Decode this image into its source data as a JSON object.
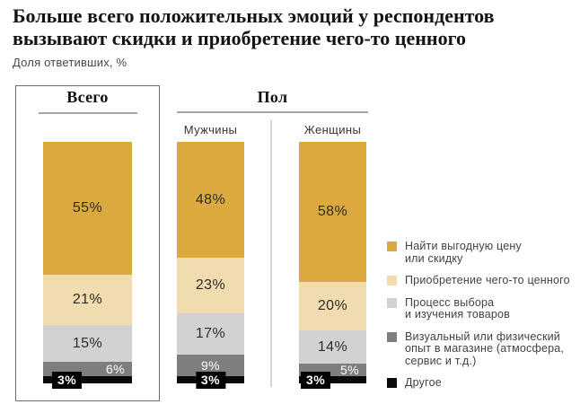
{
  "header": {
    "title": "Больше всего положительных эмоций у респондентов\nвызывают скидки и приобретение чего-то ценного",
    "subtitle": "Доля ответивших, %"
  },
  "chart_data": {
    "type": "bar",
    "stacked": true,
    "orientation": "vertical",
    "value_suffix": "%",
    "ylim": [
      0,
      100
    ],
    "grid": false,
    "legend_position": "right",
    "categories": [
      "Всего",
      "Мужчины",
      "Женщины"
    ],
    "group_headers": [
      {
        "label": "Всего",
        "categories": [
          "Всего"
        ],
        "boxed": true
      },
      {
        "label": "Пол",
        "categories": [
          "Мужчины",
          "Женщины"
        ],
        "boxed": false
      }
    ],
    "series": [
      {
        "key": "price-discount",
        "name": "Найти выгодную цену или скидку",
        "color": "#DBA93E",
        "values": [
          55,
          48,
          58
        ]
      },
      {
        "key": "valuable-purchase",
        "name": "Приобретение чего-то ценного",
        "color": "#F0DCAE",
        "values": [
          21,
          23,
          20
        ]
      },
      {
        "key": "choosing-process",
        "name": "Процесс выбора и изучения товаров",
        "color": "#D2D2D2",
        "values": [
          15,
          17,
          14
        ]
      },
      {
        "key": "store-experience",
        "name": "Визуальный или физический опыт в магазине (атмосфера, сервис и т.д.)",
        "color": "#7E7E7E",
        "values": [
          6,
          9,
          5
        ]
      },
      {
        "key": "other",
        "name": "Другое",
        "color": "#0A0A0A",
        "values": [
          3,
          3,
          3
        ]
      }
    ],
    "label_layout": [
      [
        "center",
        "center",
        "center"
      ],
      [
        "center",
        "center",
        "center"
      ],
      [
        "center",
        "center",
        "center"
      ],
      [
        "white-right",
        "white-center",
        "white-right"
      ],
      [
        "badge:10",
        "badge-center",
        "badge:2"
      ]
    ]
  },
  "legend": {
    "items": [
      {
        "color": "#DBA93E",
        "label": "Найти выгодную цену\nили скидку"
      },
      {
        "color": "#F0DCAE",
        "label": "Приобретение чего-то ценного"
      },
      {
        "color": "#D2D2D2",
        "label": "Процесс выбора\nи изучения товаров"
      },
      {
        "color": "#7E7E7E",
        "label": "Визуальный или физический\nопыт в магазине (атмосфера,\nсервис и т.д.)"
      },
      {
        "color": "#0A0A0A",
        "label": "Другое"
      }
    ]
  }
}
